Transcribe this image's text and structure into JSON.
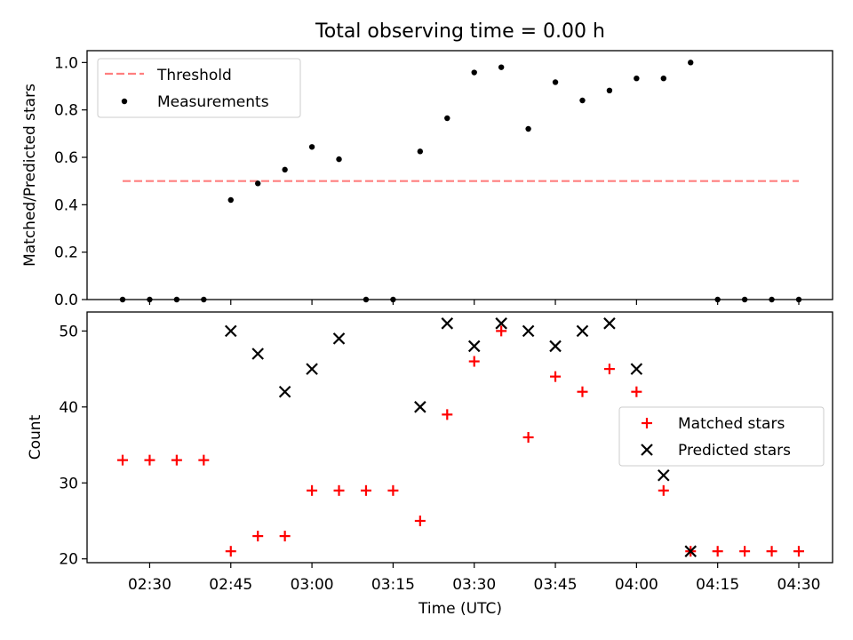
{
  "figure": {
    "title": "Total observing time = 0.00 h",
    "xlabel": "Time (UTC)"
  },
  "chart_data": [
    {
      "type": "scatter",
      "title": "Total observing time = 0.00 h",
      "xlabel": "",
      "ylabel": "Matched/Predicted stars",
      "ylim": [
        0,
        1.05
      ],
      "yticks": [
        "0.0",
        "0.2",
        "0.4",
        "0.6",
        "0.8",
        "1.0"
      ],
      "legend_position": "top-left",
      "x": [
        "02:25",
        "02:30",
        "02:35",
        "02:40",
        "02:45",
        "02:50",
        "02:55",
        "03:00",
        "03:05",
        "03:10",
        "03:15",
        "03:20",
        "03:25",
        "03:30",
        "03:35",
        "03:40",
        "03:45",
        "03:50",
        "03:55",
        "04:00",
        "04:05",
        "04:10",
        "04:15",
        "04:20",
        "04:25",
        "04:30"
      ],
      "threshold": {
        "name": "Threshold",
        "value": 0.5,
        "color": "#ff7f7f",
        "x_range": [
          "02:25",
          "04:30"
        ]
      },
      "series": [
        {
          "name": "Measurements",
          "color": "#000000",
          "values": [
            0,
            0,
            0,
            0,
            0.42,
            0.49,
            0.548,
            0.644,
            0.592,
            0,
            0,
            0.625,
            0.765,
            0.958,
            0.98,
            0.72,
            0.917,
            0.84,
            0.882,
            0.933,
            0.933,
            1.0,
            0,
            0,
            0,
            0
          ]
        }
      ]
    },
    {
      "type": "scatter",
      "xlabel": "Time (UTC)",
      "ylabel": "Count",
      "ylim": [
        19.5,
        52.5
      ],
      "yticks": [
        "20",
        "30",
        "40",
        "50"
      ],
      "xticks": [
        "02:30",
        "02:45",
        "03:00",
        "03:15",
        "03:30",
        "03:45",
        "04:00",
        "04:15",
        "04:30"
      ],
      "legend_position": "right",
      "x": [
        "02:25",
        "02:30",
        "02:35",
        "02:40",
        "02:45",
        "02:50",
        "02:55",
        "03:00",
        "03:05",
        "03:10",
        "03:15",
        "03:20",
        "03:25",
        "03:30",
        "03:35",
        "03:40",
        "03:45",
        "03:50",
        "03:55",
        "04:00",
        "04:05",
        "04:10",
        "04:15",
        "04:20",
        "04:25",
        "04:30"
      ],
      "series": [
        {
          "name": "Matched stars",
          "marker": "plus",
          "color": "#ff0000",
          "values": [
            33,
            33,
            33,
            33,
            21,
            23,
            23,
            29,
            29,
            29,
            29,
            25,
            39,
            46,
            50,
            36,
            44,
            42,
            45,
            42,
            29,
            21,
            21,
            21,
            21,
            21
          ]
        },
        {
          "name": "Predicted stars",
          "marker": "x",
          "color": "#000000",
          "values": [
            null,
            null,
            null,
            null,
            50,
            47,
            42,
            45,
            49,
            null,
            null,
            40,
            51,
            48,
            51,
            50,
            48,
            50,
            51,
            45,
            31,
            21,
            null,
            null,
            null,
            null
          ]
        }
      ]
    }
  ]
}
